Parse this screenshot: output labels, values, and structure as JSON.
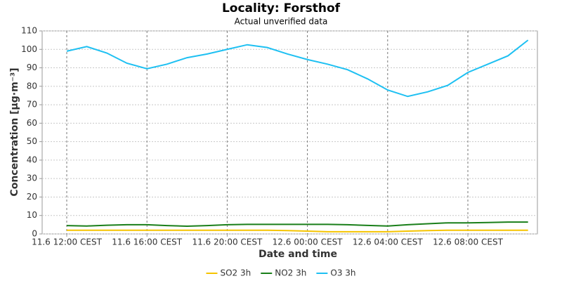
{
  "chart_data": {
    "type": "line",
    "title": "Locality: Forsthof",
    "subtitle": "Actual unverified data",
    "y_label": "Concentration [µg·m⁻³]",
    "x_label": "Date and time",
    "x": [
      "11.6 12:00 CEST",
      "11.6 13:00 CEST",
      "11.6 14:00 CEST",
      "11.6 15:00 CEST",
      "11.6 16:00 CEST",
      "11.6 17:00 CEST",
      "11.6 18:00 CEST",
      "11.6 19:00 CEST",
      "11.6 20:00 CEST",
      "11.6 21:00 CEST",
      "11.6 22:00 CEST",
      "11.6 23:00 CEST",
      "12.6 00:00 CEST",
      "12.6 01:00 CEST",
      "12.6 02:00 CEST",
      "12.6 03:00 CEST",
      "12.6 04:00 CEST",
      "12.6 05:00 CEST",
      "12.6 06:00 CEST",
      "12.6 07:00 CEST",
      "12.6 08:00 CEST",
      "12.6 09:00 CEST",
      "12.6 10:00 CEST",
      "12.6 11:00 CEST"
    ],
    "xticks": [
      "11.6 12:00 CEST",
      "11.6 16:00 CEST",
      "11.6 20:00 CEST",
      "12.6 00:00 CEST",
      "12.6 04:00 CEST",
      "12.6 08:00 CEST"
    ],
    "ylim": [
      0,
      110
    ],
    "yticks": [
      0,
      10,
      20,
      30,
      40,
      50,
      60,
      70,
      80,
      90,
      100,
      110
    ],
    "grid": true,
    "legend": "bottom",
    "series": [
      {
        "name": "SO2 3h",
        "color": "#f5c400",
        "values": [
          2,
          2,
          2,
          2,
          2,
          2,
          2,
          2,
          2,
          2,
          2,
          1.8,
          1.5,
          1.2,
          1.2,
          1.2,
          1.2,
          1.5,
          1.8,
          2,
          2,
          2,
          2,
          2
        ]
      },
      {
        "name": "NO2 3h",
        "color": "#1a7f1a",
        "values": [
          4.5,
          4.3,
          4.7,
          5,
          5,
          4.5,
          4.2,
          4.5,
          5,
          5.2,
          5.2,
          5.2,
          5.2,
          5.2,
          5,
          4.6,
          4.3,
          5,
          5.5,
          6,
          6,
          6.2,
          6.4,
          6.4
        ]
      },
      {
        "name": "O3 3h",
        "color": "#1ec0f2",
        "values": [
          99,
          101.5,
          98,
          92.5,
          89.5,
          92,
          95.5,
          97.5,
          100,
          102.5,
          101,
          97.5,
          94.5,
          92,
          89,
          84,
          78,
          74.5,
          77,
          80.5,
          87.5,
          92,
          96.5,
          105
        ]
      }
    ]
  }
}
